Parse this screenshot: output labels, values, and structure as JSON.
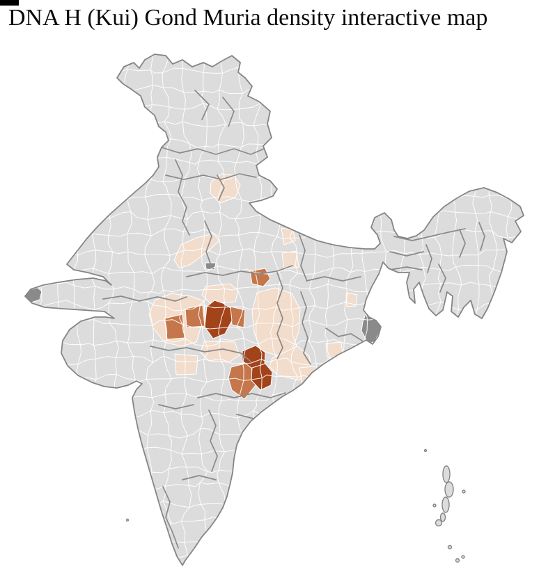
{
  "title": "DNA H (Kui) Gond Muria density interactive map",
  "map": {
    "name": "India district-level density choropleth",
    "palette": {
      "background": "#ffffff",
      "land_base": "#dcdcdc",
      "district_border": "#ffffff",
      "state_border": "#8a8a8a",
      "coast_outline": "#858585",
      "density_low": "#f2dccb",
      "density_mid": "#c5764b",
      "density_high": "#a3431a",
      "special_gray": "#8a8a8a"
    },
    "regions": [
      {
        "id": "uttarakhand",
        "level": "low"
      },
      {
        "id": "gwalior-band",
        "level": "low"
      },
      {
        "id": "north-up-1",
        "level": "low"
      },
      {
        "id": "north-up-2",
        "level": "low"
      },
      {
        "id": "malwa-belt",
        "level": "low"
      },
      {
        "id": "north-betul",
        "level": "low"
      },
      {
        "id": "south-betul",
        "level": "low"
      },
      {
        "id": "nw-maharashtra",
        "level": "low"
      },
      {
        "id": "chhattisgarh-plain",
        "level": "low"
      },
      {
        "id": "andhra-coastal",
        "level": "low"
      },
      {
        "id": "andhra-coastal-2",
        "level": "low"
      },
      {
        "id": "odisha-east",
        "level": "low"
      },
      {
        "id": "odisha-south",
        "level": "low"
      },
      {
        "id": "malwa-mid-west",
        "level": "medium"
      },
      {
        "id": "malwa-mid-east",
        "level": "medium"
      },
      {
        "id": "betul-east",
        "level": "medium"
      },
      {
        "id": "damoh",
        "level": "medium"
      },
      {
        "id": "bastar-west",
        "level": "medium"
      },
      {
        "id": "betul-core",
        "level": "high"
      },
      {
        "id": "bastar-north",
        "level": "high"
      },
      {
        "id": "bastar-south",
        "level": "high"
      },
      {
        "id": "kolkata-delta",
        "level": "gray"
      },
      {
        "id": "datia",
        "level": "gray"
      },
      {
        "id": "kutch-west",
        "level": "gray"
      },
      {
        "id": "coastal-gray",
        "level": "gray"
      }
    ]
  }
}
